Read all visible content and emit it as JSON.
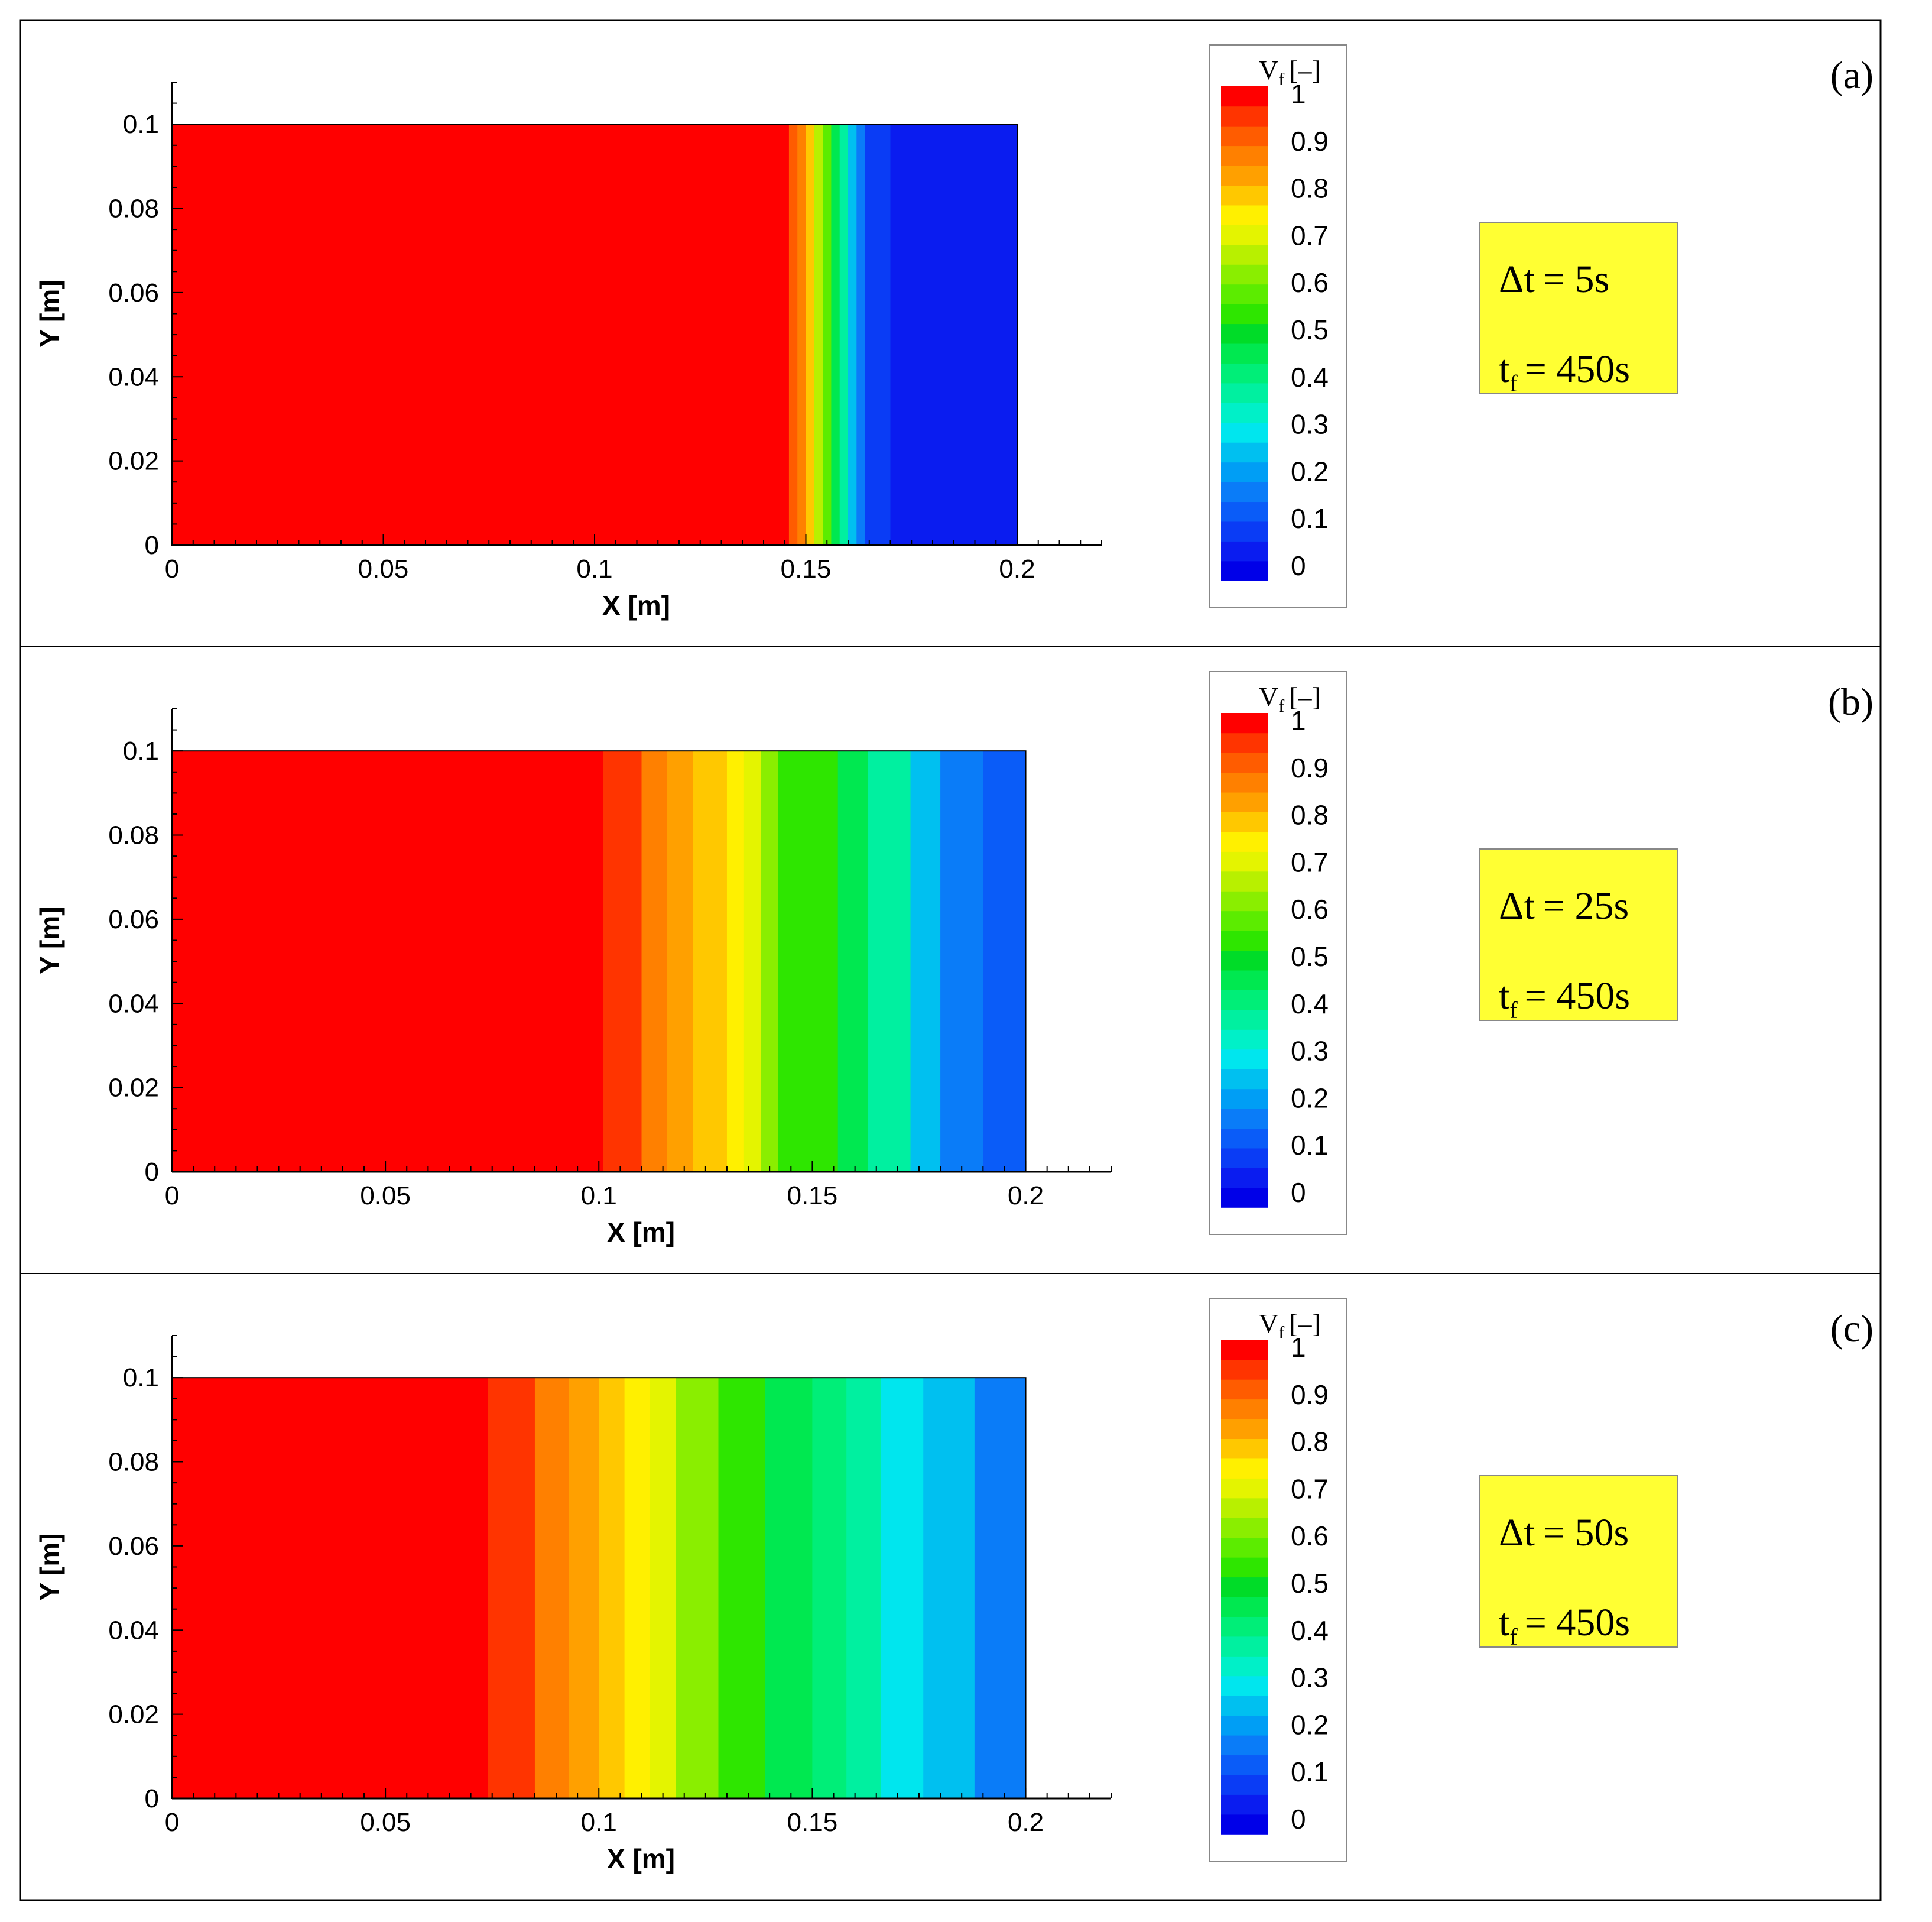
{
  "colormap": [
    "#0000e8",
    "#0a1cf0",
    "#0a3cf5",
    "#0a5cf8",
    "#0a7cf8",
    "#009ef5",
    "#00c0f0",
    "#00e6ee",
    "#00f0c8",
    "#00f0a0",
    "#00ee78",
    "#00e850",
    "#00dc28",
    "#2ee600",
    "#5cec00",
    "#8aee00",
    "#b8f000",
    "#e4f400",
    "#fff000",
    "#ffc800",
    "#ffa000",
    "#ff8000",
    "#ff5c00",
    "#ff3400",
    "#ff0000"
  ],
  "colorbar": {
    "title_main": "V",
    "title_sub": "f",
    "title_unit": "[–]",
    "ticks": [
      "1",
      "0.9",
      "0.8",
      "0.7",
      "0.6",
      "0.5",
      "0.4",
      "0.3",
      "0.2",
      "0.1",
      "0"
    ]
  },
  "chart_data": [
    {
      "type": "heatmap",
      "panel_label": "(a)",
      "xlabel": "X [m]",
      "ylabel": "Y [m]",
      "xlim": [
        0,
        0.22
      ],
      "ylim": [
        0,
        0.11
      ],
      "x_ticks": [
        "0",
        "0.05",
        "0.1",
        "0.15",
        "0.2"
      ],
      "y_ticks": [
        "0",
        "0.02",
        "0.04",
        "0.06",
        "0.08",
        "0.1"
      ],
      "domain_x": [
        0,
        0.2
      ],
      "domain_y": [
        0,
        0.1
      ],
      "field_variable": "V_f",
      "bands": [
        {
          "x_start": 0.0,
          "value": 0.96
        },
        {
          "x_start": 0.146,
          "value": 0.9
        },
        {
          "x_start": 0.148,
          "value": 0.84
        },
        {
          "x_start": 0.15,
          "value": 0.76
        },
        {
          "x_start": 0.152,
          "value": 0.66
        },
        {
          "x_start": 0.154,
          "value": 0.56
        },
        {
          "x_start": 0.156,
          "value": 0.46
        },
        {
          "x_start": 0.158,
          "value": 0.36
        },
        {
          "x_start": 0.16,
          "value": 0.26
        },
        {
          "x_start": 0.162,
          "value": 0.16
        },
        {
          "x_start": 0.164,
          "value": 0.1
        },
        {
          "x_start": 0.17,
          "value": 0.06
        }
      ],
      "annotation_line1_lhs": "Δt",
      "annotation_line1_rhs": "= 5s",
      "annotation_line2_lhs": "t",
      "annotation_line2_sub": "f",
      "annotation_line2_rhs": "= 450s"
    },
    {
      "type": "heatmap",
      "panel_label": "(b)",
      "xlabel": "X [m]",
      "ylabel": "Y [m]",
      "xlim": [
        0,
        0.22
      ],
      "ylim": [
        0,
        0.11
      ],
      "x_ticks": [
        "0",
        "0.05",
        "0.1",
        "0.15",
        "0.2"
      ],
      "y_ticks": [
        "0",
        "0.02",
        "0.04",
        "0.06",
        "0.08",
        "0.1"
      ],
      "domain_x": [
        0,
        0.2
      ],
      "domain_y": [
        0,
        0.1
      ],
      "field_variable": "V_f",
      "bands": [
        {
          "x_start": 0.0,
          "value": 0.96
        },
        {
          "x_start": 0.101,
          "value": 0.92
        },
        {
          "x_start": 0.11,
          "value": 0.87
        },
        {
          "x_start": 0.116,
          "value": 0.83
        },
        {
          "x_start": 0.122,
          "value": 0.78
        },
        {
          "x_start": 0.13,
          "value": 0.73
        },
        {
          "x_start": 0.134,
          "value": 0.68
        },
        {
          "x_start": 0.138,
          "value": 0.62
        },
        {
          "x_start": 0.142,
          "value": 0.55
        },
        {
          "x_start": 0.156,
          "value": 0.47
        },
        {
          "x_start": 0.163,
          "value": 0.36
        },
        {
          "x_start": 0.173,
          "value": 0.25
        },
        {
          "x_start": 0.18,
          "value": 0.19
        },
        {
          "x_start": 0.19,
          "value": 0.13
        }
      ],
      "annotation_line1_lhs": "Δt",
      "annotation_line1_rhs": "= 25s",
      "annotation_line2_lhs": "t",
      "annotation_line2_sub": "f",
      "annotation_line2_rhs": "= 450s"
    },
    {
      "type": "heatmap",
      "panel_label": "(c)",
      "xlabel": "X [m]",
      "ylabel": "Y [m]",
      "xlim": [
        0,
        0.22
      ],
      "ylim": [
        0,
        0.11
      ],
      "x_ticks": [
        "0",
        "0.05",
        "0.1",
        "0.15",
        "0.2"
      ],
      "y_ticks": [
        "0",
        "0.02",
        "0.04",
        "0.06",
        "0.08",
        "0.1"
      ],
      "domain_x": [
        0,
        0.2
      ],
      "domain_y": [
        0,
        0.1
      ],
      "field_variable": "V_f",
      "bands": [
        {
          "x_start": 0.0,
          "value": 0.96
        },
        {
          "x_start": 0.074,
          "value": 0.92
        },
        {
          "x_start": 0.085,
          "value": 0.87
        },
        {
          "x_start": 0.093,
          "value": 0.83
        },
        {
          "x_start": 0.1,
          "value": 0.78
        },
        {
          "x_start": 0.106,
          "value": 0.73
        },
        {
          "x_start": 0.112,
          "value": 0.68
        },
        {
          "x_start": 0.118,
          "value": 0.62
        },
        {
          "x_start": 0.128,
          "value": 0.55
        },
        {
          "x_start": 0.139,
          "value": 0.47
        },
        {
          "x_start": 0.15,
          "value": 0.41
        },
        {
          "x_start": 0.158,
          "value": 0.36
        },
        {
          "x_start": 0.166,
          "value": 0.3
        },
        {
          "x_start": 0.176,
          "value": 0.25
        },
        {
          "x_start": 0.188,
          "value": 0.19
        }
      ],
      "annotation_line1_lhs": "Δt",
      "annotation_line1_rhs": "= 50s",
      "annotation_line2_lhs": "t",
      "annotation_line2_sub": "f",
      "annotation_line2_rhs": "= 450s"
    }
  ]
}
